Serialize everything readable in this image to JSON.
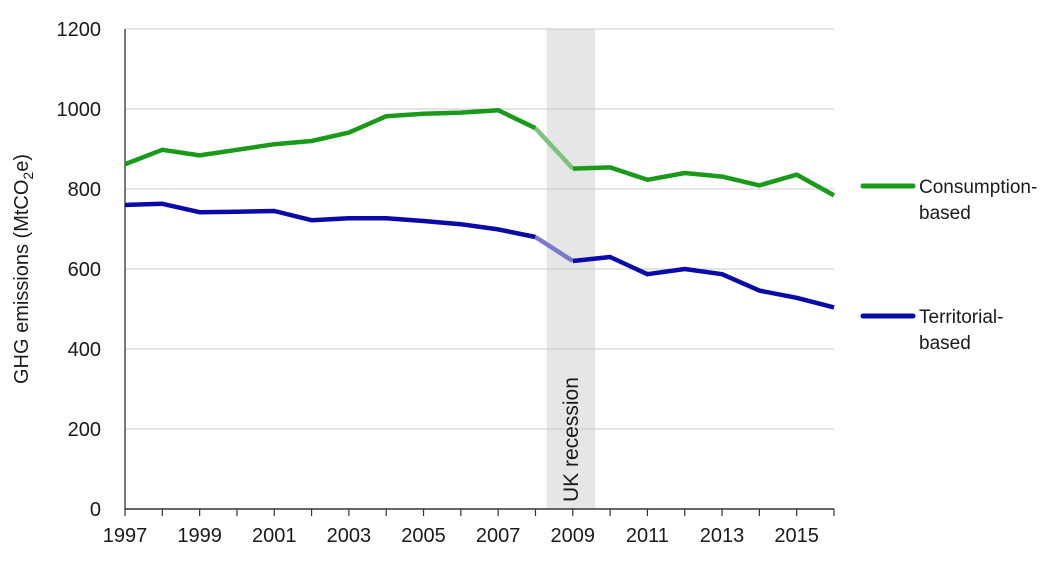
{
  "chart_data": {
    "type": "line",
    "ylabel": "GHG emissions (MtCO",
    "ylabel_sub": "2",
    "ylabel_tail": "e)",
    "xlim": [
      1997,
      2016
    ],
    "ylim": [
      0,
      1200
    ],
    "yticks": [
      0,
      200,
      400,
      600,
      800,
      1000,
      1200
    ],
    "xticks": [
      1997,
      1999,
      2001,
      2003,
      2005,
      2007,
      2009,
      2011,
      2013,
      2015
    ],
    "grid": "horizontal",
    "legend_position": "right",
    "x": [
      1997,
      1998,
      1999,
      2000,
      2001,
      2002,
      2003,
      2004,
      2005,
      2006,
      2007,
      2008,
      2009,
      2010,
      2011,
      2012,
      2013,
      2014,
      2015,
      2016
    ],
    "series": [
      {
        "name_lines": [
          "Consumption-",
          "based"
        ],
        "color": "#1a9a1a",
        "recession_color": "#7dc27d",
        "values": [
          862,
          898,
          884,
          898,
          912,
          920,
          941,
          982,
          988,
          991,
          997,
          952,
          851,
          854,
          823,
          840,
          831,
          809,
          836,
          784
        ]
      },
      {
        "name_lines": [
          "Territorial-",
          "based"
        ],
        "color": "#0a0aa8",
        "recession_color": "#7a7acc",
        "values": [
          760,
          763,
          742,
          743,
          745,
          722,
          727,
          727,
          720,
          712,
          699,
          680,
          620,
          630,
          587,
          600,
          587,
          546,
          528,
          504
        ]
      }
    ],
    "annotation": {
      "text": "UK recession",
      "x_start": 2008.3,
      "x_end": 2009.6,
      "color": "#e6e6e6"
    }
  }
}
